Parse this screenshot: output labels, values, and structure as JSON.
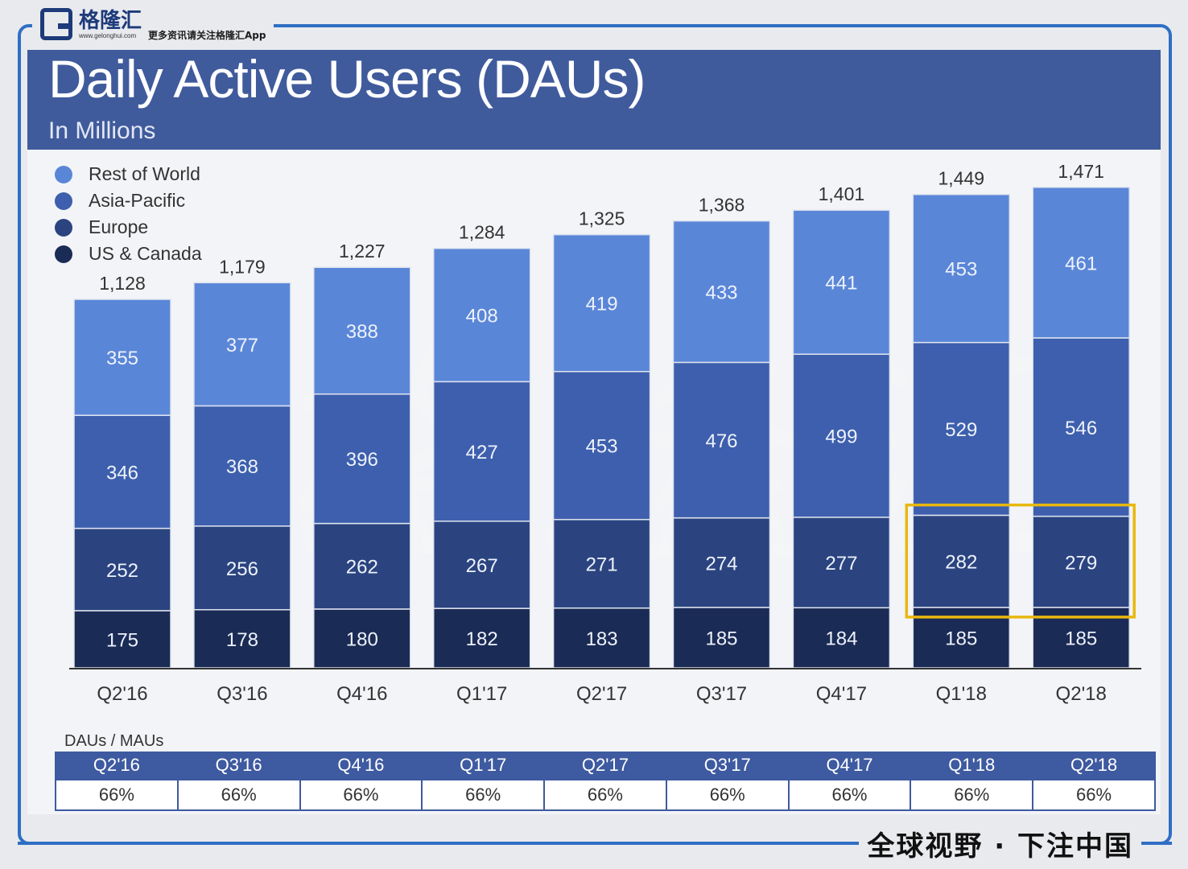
{
  "brand": {
    "name": "格隆汇",
    "url": "www.gelonghui.com",
    "tagline": "更多资讯请关注格隆汇App"
  },
  "header": {
    "title": "Daily Active Users (DAUs)",
    "subtitle": "In Millions"
  },
  "footer": {
    "slogan": "全球视野 · 下注中国"
  },
  "watermark": {
    "text": "格隆汇",
    "url": "www.gelonghui.com"
  },
  "colors": {
    "rest_of_world": "#5a86d8",
    "asia_pacific": "#3d5fad",
    "europe": "#2b4480",
    "us_canada": "#1a2b55",
    "banner": "#405b9c",
    "highlight": "#e8b80e"
  },
  "legend": [
    {
      "label": "Rest of World",
      "color": "#5a86d8"
    },
    {
      "label": "Asia-Pacific",
      "color": "#3d5fad"
    },
    {
      "label": "Europe",
      "color": "#2b4480"
    },
    {
      "label": "US & Canada",
      "color": "#1a2b55"
    }
  ],
  "chart_data": {
    "type": "bar",
    "stacked": true,
    "title": "Daily Active Users (DAUs)",
    "ylabel": "In Millions",
    "ylim": [
      0,
      1600
    ],
    "categories": [
      "Q2'16",
      "Q3'16",
      "Q4'16",
      "Q1'17",
      "Q2'17",
      "Q3'17",
      "Q4'17",
      "Q1'18",
      "Q2'18"
    ],
    "series": [
      {
        "name": "US & Canada",
        "values": [
          175,
          178,
          180,
          182,
          183,
          185,
          184,
          185,
          185
        ]
      },
      {
        "name": "Europe",
        "values": [
          252,
          256,
          262,
          267,
          271,
          274,
          277,
          282,
          279
        ]
      },
      {
        "name": "Asia-Pacific",
        "values": [
          346,
          368,
          396,
          427,
          453,
          476,
          499,
          529,
          546
        ]
      },
      {
        "name": "Rest of World",
        "values": [
          355,
          377,
          388,
          408,
          419,
          433,
          441,
          453,
          461
        ]
      }
    ],
    "totals": [
      "1,128",
      "1,179",
      "1,227",
      "1,284",
      "1,325",
      "1,368",
      "1,401",
      "1,449",
      "1,471"
    ],
    "highlight": {
      "series": "Europe",
      "categories": [
        "Q1'18",
        "Q2'18"
      ]
    }
  },
  "ratio_table": {
    "title": "DAUs / MAUs",
    "headers": [
      "Q2'16",
      "Q3'16",
      "Q4'16",
      "Q1'17",
      "Q2'17",
      "Q3'17",
      "Q4'17",
      "Q1'18",
      "Q2'18"
    ],
    "values": [
      "66%",
      "66%",
      "66%",
      "66%",
      "66%",
      "66%",
      "66%",
      "66%",
      "66%"
    ]
  }
}
